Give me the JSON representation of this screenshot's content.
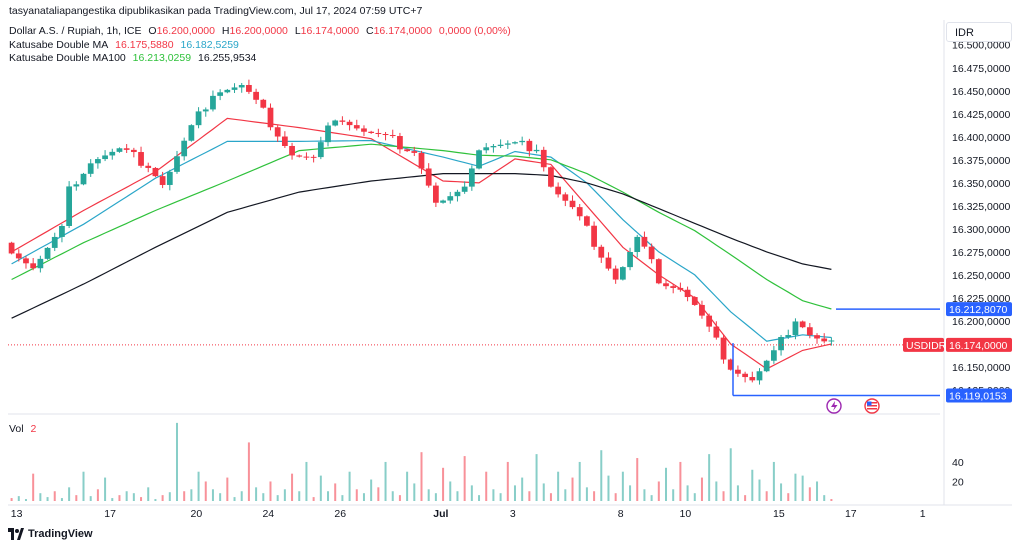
{
  "header": {
    "publish_line": "tasyanataliapangestika dipublikasikan pada TradingView.com, Jul 17, 2024 07:59 UTC+7",
    "symbol": "Dollar A.S. / Rupiah, 1h, ICE",
    "ohlc": {
      "o_label": "O",
      "o": "16.200,0000",
      "h_label": "H",
      "h": "16.200,0000",
      "l_label": "L",
      "l": "16.174,0000",
      "c_label": "C",
      "c": "16.174,0000",
      "change": "0,0000 (0,00%)"
    },
    "ma1": {
      "label": "Katusabe Double MA",
      "v1": "16.175,5880",
      "v2": "16.182,5259"
    },
    "ma2": {
      "label": "Katusabe Double MA100",
      "v1": "16.213,0259",
      "v2": "16.255,9534"
    }
  },
  "currency_box": "IDR",
  "volume_pane": {
    "label": "Vol",
    "value": "2",
    "ticks": [
      "40",
      "20"
    ]
  },
  "watermark": "TradingView",
  "colors": {
    "up": "#26a69a",
    "down": "#f23645",
    "ma_fast": "#f23645",
    "ma_mid": "#2aa6c9",
    "ma_slow": "#2fc13b",
    "ma_long": "#131722",
    "line_label": "#2962ff"
  },
  "price_labels": [
    {
      "name": "MA100 level",
      "text": "16.212,8070",
      "value": 16212.807
    },
    {
      "name": "USDIDR",
      "prefix": "USDIDR",
      "text": "16.174,0000",
      "value": 16174
    },
    {
      "name": "Low line",
      "text": "16.119,0153",
      "value": 16119.0153
    }
  ],
  "chart_data": {
    "type": "candlestick",
    "title": "Dollar A.S. / Rupiah, 1h, ICE",
    "y_ticks": [
      {
        "label": "16.500,0000",
        "value": 16500
      },
      {
        "label": "16.475,0000",
        "value": 16475
      },
      {
        "label": "16.450,0000",
        "value": 16450
      },
      {
        "label": "16.425,0000",
        "value": 16425
      },
      {
        "label": "16.400,0000",
        "value": 16400
      },
      {
        "label": "16.375,0000",
        "value": 16375
      },
      {
        "label": "16.350,0000",
        "value": 16350
      },
      {
        "label": "16.325,0000",
        "value": 16325
      },
      {
        "label": "16.300,0000",
        "value": 16300
      },
      {
        "label": "16.275,0000",
        "value": 16275
      },
      {
        "label": "16.250,0000",
        "value": 16250
      },
      {
        "label": "16.225,0000",
        "value": 16225
      },
      {
        "label": "16.200,0000",
        "value": 16200
      },
      {
        "label": "16.150,0000",
        "value": 16150
      },
      {
        "label": "16.125,0000",
        "value": 16125
      }
    ],
    "ylim": [
      16112,
      16516
    ],
    "x_ticks": [
      "13",
      "17",
      "20",
      "24",
      "26",
      "Jul",
      "3",
      "8",
      "10",
      "15",
      "17",
      "1"
    ],
    "last_price": 16174,
    "line_levels": [
      16212.807,
      16119.0153
    ],
    "trend_points": [
      {
        "x": 0,
        "y": 16285
      },
      {
        "x": 4,
        "y": 16258
      },
      {
        "x": 8,
        "y": 16300
      },
      {
        "x": 9,
        "y": 16345
      },
      {
        "x": 12,
        "y": 16375
      },
      {
        "x": 16,
        "y": 16385
      },
      {
        "x": 20,
        "y": 16370
      },
      {
        "x": 22,
        "y": 16348
      },
      {
        "x": 26,
        "y": 16410
      },
      {
        "x": 29,
        "y": 16450
      },
      {
        "x": 33,
        "y": 16455
      },
      {
        "x": 37,
        "y": 16415
      },
      {
        "x": 40,
        "y": 16380
      },
      {
        "x": 43,
        "y": 16375
      },
      {
        "x": 46,
        "y": 16425
      },
      {
        "x": 50,
        "y": 16405
      },
      {
        "x": 54,
        "y": 16395
      },
      {
        "x": 57,
        "y": 16385
      },
      {
        "x": 60,
        "y": 16325
      },
      {
        "x": 63,
        "y": 16335
      },
      {
        "x": 66,
        "y": 16390
      },
      {
        "x": 70,
        "y": 16390
      },
      {
        "x": 74,
        "y": 16390
      },
      {
        "x": 76,
        "y": 16345
      },
      {
        "x": 79,
        "y": 16320
      },
      {
        "x": 82,
        "y": 16285
      },
      {
        "x": 85,
        "y": 16245
      },
      {
        "x": 88,
        "y": 16290
      },
      {
        "x": 91,
        "y": 16245
      },
      {
        "x": 94,
        "y": 16235
      },
      {
        "x": 96,
        "y": 16215
      },
      {
        "x": 99,
        "y": 16175
      },
      {
        "x": 101,
        "y": 16150
      },
      {
        "x": 104,
        "y": 16135
      },
      {
        "x": 107,
        "y": 16165
      },
      {
        "x": 110,
        "y": 16205
      },
      {
        "x": 112,
        "y": 16185
      },
      {
        "x": 114,
        "y": 16176
      }
    ],
    "ma_series": [
      {
        "name": "Katusabe Double MA",
        "color": "#f23645",
        "x": [
          0,
          10,
          20,
          30,
          40,
          50,
          60,
          65,
          70,
          75,
          80,
          85,
          90,
          95,
          100,
          105,
          110,
          114
        ],
        "values": [
          16275,
          16320,
          16362,
          16420,
          16410,
          16398,
          16352,
          16350,
          16376,
          16370,
          16325,
          16280,
          16250,
          16225,
          16175,
          16148,
          16168,
          16175
        ]
      },
      {
        "name": "Katusabe Double MA",
        "color": "#2aa6c9",
        "x": [
          0,
          10,
          20,
          30,
          40,
          50,
          60,
          65,
          70,
          75,
          80,
          85,
          90,
          95,
          100,
          105,
          110,
          114
        ],
        "values": [
          16262,
          16305,
          16355,
          16395,
          16395,
          16396,
          16378,
          16368,
          16384,
          16378,
          16350,
          16310,
          16275,
          16250,
          16210,
          16178,
          16185,
          16182
        ]
      },
      {
        "name": "Katusabe Double MA100",
        "color": "#2fc13b",
        "x": [
          0,
          10,
          20,
          30,
          40,
          50,
          60,
          65,
          70,
          75,
          80,
          85,
          90,
          95,
          100,
          105,
          110,
          114
        ],
        "values": [
          16245,
          16285,
          16320,
          16352,
          16385,
          16392,
          16385,
          16380,
          16379,
          16375,
          16360,
          16340,
          16318,
          16298,
          16272,
          16245,
          16222,
          16213
        ]
      },
      {
        "name": "Katusabe Double MA100",
        "color": "#131722",
        "x": [
          0,
          10,
          20,
          30,
          40,
          50,
          60,
          65,
          70,
          75,
          80,
          85,
          90,
          95,
          100,
          105,
          110,
          114
        ],
        "values": [
          16203,
          16240,
          16280,
          16318,
          16340,
          16352,
          16360,
          16360,
          16360,
          16358,
          16350,
          16338,
          16322,
          16306,
          16290,
          16275,
          16262,
          16256
        ]
      }
    ],
    "volume": [
      3,
      5,
      2,
      28,
      8,
      4,
      10,
      3,
      14,
      6,
      30,
      5,
      12,
      24,
      3,
      6,
      10,
      8,
      4,
      14,
      2,
      6,
      9,
      80,
      10,
      12,
      30,
      20,
      12,
      8,
      24,
      4,
      10,
      60,
      14,
      8,
      20,
      6,
      12,
      28,
      10,
      40,
      4,
      26,
      10,
      18,
      6,
      30,
      12,
      8,
      22,
      14,
      40,
      10,
      6,
      30,
      18,
      50,
      12,
      8,
      34,
      20,
      10,
      46,
      16,
      6,
      30,
      12,
      8,
      40,
      16,
      24,
      10,
      48,
      18,
      8,
      30,
      12,
      24,
      40,
      14,
      10,
      52,
      26,
      8,
      30,
      16,
      44,
      12,
      6,
      20,
      34,
      12,
      40,
      16,
      8,
      24,
      48,
      20,
      10,
      54,
      16,
      6,
      32,
      22,
      10,
      40,
      18,
      8,
      28,
      26,
      14,
      20,
      6,
      2
    ],
    "volume_ylim": [
      0,
      85
    ]
  }
}
